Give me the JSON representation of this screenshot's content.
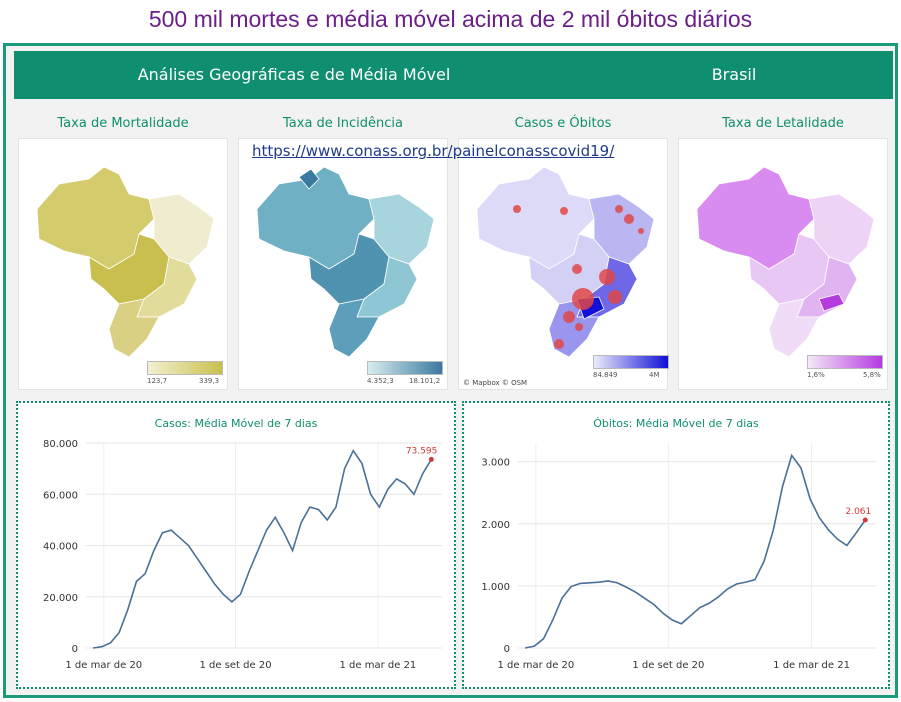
{
  "headline": "500 mil mortes e média móvel acima de 2 mil óbitos diários",
  "banner": {
    "left_title": "Análises Geográficas e de Média Móvel",
    "right_title": "Brasil"
  },
  "url": "https://www.conass.org.br/painelconasscovid19/",
  "maps": [
    {
      "title": "Taxa de Mortalidade",
      "legend_min": "123,7",
      "legend_max": "339,3",
      "color_low": "#f3f0d2",
      "color_high": "#c9bf4f"
    },
    {
      "title": "Taxa de Incidência",
      "legend_min": "4.352,3",
      "legend_max": "18.101,2",
      "color_low": "#d8ecf0",
      "color_high": "#3a7aa0"
    },
    {
      "title": "Casos e Óbitos",
      "legend_min": "84.849",
      "legend_max": "4M",
      "color_low": "#ecebfb",
      "color_high": "#1010d8",
      "attribution": "© Mapbox  © OSM"
    },
    {
      "title": "Taxa de Letalidade",
      "legend_min": "1,6%",
      "legend_max": "5,8%",
      "color_low": "#f4e8f7",
      "color_high": "#b43be0"
    }
  ],
  "charts": [
    {
      "title": "Casos: Média Móvel de 7 dias",
      "y_ticks": [
        "80.000",
        "60.000",
        "40.000",
        "20.000",
        "0"
      ],
      "y_values": [
        80000,
        60000,
        40000,
        20000,
        0
      ],
      "x_ticks": [
        "1 de mar de 20",
        "1 de set de 20",
        "1 de mar de 21"
      ],
      "last_value_label": "73.595",
      "chart_data": {
        "type": "line",
        "ylim": [
          0,
          80000
        ],
        "series": [
          {
            "values": [
              0,
              500,
              2000,
              6000,
              15000,
              26000,
              29000,
              38000,
              45000,
              46000,
              43000,
              40000,
              35000,
              30000,
              25000,
              21000,
              18000,
              21000,
              30000,
              38000,
              46000,
              51000,
              45000,
              38000,
              49000,
              55000,
              54000,
              50000,
              55000,
              70000,
              77000,
              72000,
              60000,
              55000,
              62000,
              66000,
              64000,
              60000,
              68000,
              73595
            ]
          }
        ]
      }
    },
    {
      "title": "Óbitos: Média Móvel de 7 dias",
      "y_ticks": [
        "3.000",
        "2.000",
        "1.000",
        "0"
      ],
      "y_values": [
        3000,
        2000,
        1000,
        0
      ],
      "x_ticks": [
        "1 de mar de 20",
        "1 de set de 20",
        "1 de mar de 21"
      ],
      "last_value_label": "2.061",
      "chart_data": {
        "type": "line",
        "ylim": [
          0,
          3300
        ],
        "series": [
          {
            "values": [
              0,
              30,
              150,
              450,
              800,
              990,
              1040,
              1050,
              1060,
              1080,
              1050,
              980,
              900,
              800,
              700,
              560,
              450,
              390,
              520,
              650,
              720,
              820,
              950,
              1030,
              1060,
              1100,
              1400,
              1900,
              2600,
              3100,
              2900,
              2400,
              2100,
              1900,
              1750,
              1650,
              1850,
              2061
            ]
          }
        ]
      }
    }
  ]
}
